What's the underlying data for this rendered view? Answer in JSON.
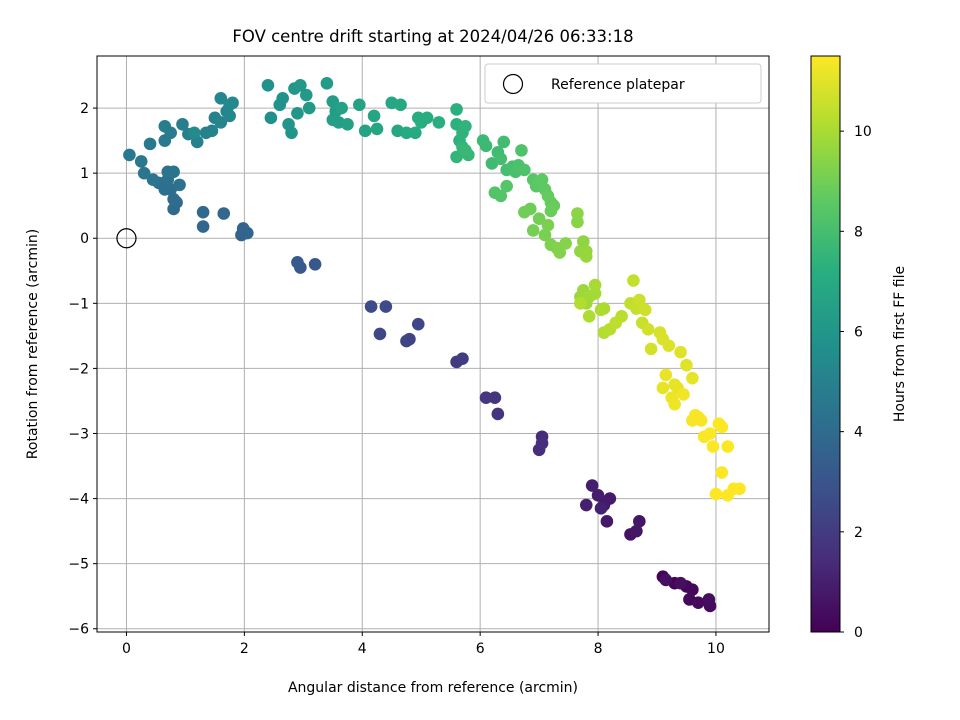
{
  "chart_data": {
    "type": "scatter",
    "title": "FOV centre drift starting at 2024/04/26 06:33:18",
    "xlabel": "Angular distance from reference (arcmin)",
    "ylabel": "Rotation from reference (arcmin)",
    "xlim": [
      -0.5,
      10.9
    ],
    "ylim": [
      -6.05,
      2.8
    ],
    "xticks": [
      0,
      2,
      4,
      6,
      8,
      10
    ],
    "yticks": [
      -6,
      -5,
      -4,
      -3,
      -2,
      -1,
      0,
      1,
      2
    ],
    "grid": true,
    "legend": {
      "placement": "top-right",
      "entries": [
        "Reference platepar"
      ]
    },
    "reference_point": {
      "x": 0,
      "y": 0
    },
    "colorbar": {
      "label": "Hours from first FF file",
      "min": 0,
      "max": 11.5,
      "ticks": [
        0,
        2,
        4,
        6,
        8,
        10
      ],
      "colormap": "viridis"
    },
    "points": [
      [
        9.1,
        -5.2,
        0.05
      ],
      [
        9.3,
        -5.3,
        0.1
      ],
      [
        9.5,
        -5.35,
        0.15
      ],
      [
        9.6,
        -5.4,
        0.2
      ],
      [
        9.55,
        -5.55,
        0.25
      ],
      [
        9.7,
        -5.6,
        0.3
      ],
      [
        9.9,
        -5.65,
        0.35
      ],
      [
        9.88,
        -5.55,
        0.4
      ],
      [
        9.4,
        -5.3,
        0.45
      ],
      [
        9.15,
        -5.25,
        0.5
      ],
      [
        8.55,
        -4.55,
        0.6
      ],
      [
        8.65,
        -4.5,
        0.65
      ],
      [
        8.7,
        -4.35,
        0.7
      ],
      [
        8.15,
        -4.35,
        0.75
      ],
      [
        8.1,
        -4.1,
        0.8
      ],
      [
        8.2,
        -4.0,
        0.85
      ],
      [
        8.0,
        -3.95,
        0.9
      ],
      [
        7.9,
        -3.8,
        0.95
      ],
      [
        7.8,
        -4.1,
        1.0
      ],
      [
        8.05,
        -4.15,
        1.05
      ],
      [
        7.05,
        -3.05,
        1.4
      ],
      [
        7.0,
        -3.25,
        1.45
      ],
      [
        7.05,
        -3.15,
        1.5
      ],
      [
        6.25,
        -2.45,
        1.7
      ],
      [
        6.3,
        -2.7,
        1.75
      ],
      [
        6.1,
        -2.45,
        1.8
      ],
      [
        5.6,
        -1.9,
        2.0
      ],
      [
        5.7,
        -1.85,
        2.05
      ],
      [
        4.8,
        -1.55,
        2.3
      ],
      [
        4.75,
        -1.58,
        2.35
      ],
      [
        4.95,
        -1.32,
        2.45
      ],
      [
        4.3,
        -1.47,
        2.5
      ],
      [
        4.15,
        -1.05,
        2.6
      ],
      [
        4.4,
        -1.05,
        2.65
      ],
      [
        3.2,
        -0.4,
        3.1
      ],
      [
        2.95,
        -0.45,
        3.2
      ],
      [
        2.9,
        -0.37,
        3.25
      ],
      [
        1.95,
        0.05,
        3.6
      ],
      [
        2.0,
        0.1,
        3.65
      ],
      [
        1.98,
        0.15,
        3.7
      ],
      [
        2.05,
        0.08,
        3.72
      ],
      [
        1.3,
        0.18,
        3.8
      ],
      [
        1.65,
        0.38,
        3.85
      ],
      [
        1.3,
        0.4,
        3.9
      ],
      [
        0.8,
        0.45,
        3.95
      ],
      [
        0.85,
        0.55,
        4.0
      ],
      [
        0.8,
        0.6,
        4.05
      ],
      [
        0.75,
        0.75,
        4.1
      ],
      [
        0.65,
        0.75,
        4.15
      ],
      [
        0.55,
        0.85,
        4.2
      ],
      [
        0.7,
        0.9,
        4.25
      ],
      [
        0.9,
        0.82,
        4.3
      ],
      [
        0.7,
        1.02,
        4.35
      ],
      [
        0.8,
        1.02,
        4.4
      ],
      [
        0.45,
        0.9,
        4.45
      ],
      [
        0.3,
        1.0,
        4.5
      ],
      [
        0.25,
        1.18,
        4.55
      ],
      [
        0.05,
        1.28,
        4.6
      ],
      [
        0.4,
        1.45,
        4.65
      ],
      [
        0.65,
        1.5,
        4.7
      ],
      [
        0.75,
        1.62,
        4.75
      ],
      [
        0.65,
        1.72,
        4.8
      ],
      [
        0.95,
        1.75,
        4.85
      ],
      [
        1.05,
        1.6,
        4.9
      ],
      [
        1.2,
        1.48,
        4.95
      ],
      [
        1.35,
        1.62,
        5.0
      ],
      [
        1.45,
        1.65,
        5.05
      ],
      [
        1.5,
        1.85,
        5.1
      ],
      [
        1.6,
        1.78,
        5.15
      ],
      [
        1.7,
        1.95,
        5.2
      ],
      [
        1.75,
        1.88,
        5.25
      ],
      [
        1.6,
        2.15,
        5.3
      ],
      [
        1.75,
        2.05,
        5.35
      ],
      [
        1.8,
        2.08,
        5.4
      ],
      [
        1.15,
        1.62,
        5.45
      ],
      [
        2.45,
        1.85,
        5.7
      ],
      [
        2.4,
        2.35,
        5.75
      ],
      [
        2.6,
        2.05,
        5.8
      ],
      [
        2.65,
        2.15,
        5.85
      ],
      [
        2.75,
        1.75,
        5.9
      ],
      [
        2.8,
        1.62,
        5.95
      ],
      [
        2.85,
        2.3,
        6.0
      ],
      [
        2.9,
        1.92,
        6.05
      ],
      [
        2.95,
        2.35,
        6.1
      ],
      [
        3.05,
        2.2,
        6.15
      ],
      [
        3.1,
        2.0,
        6.2
      ],
      [
        3.4,
        2.38,
        6.25
      ],
      [
        3.5,
        2.1,
        6.3
      ],
      [
        3.55,
        1.95,
        6.35
      ],
      [
        3.6,
        1.78,
        6.4
      ],
      [
        3.5,
        1.82,
        6.45
      ],
      [
        3.75,
        1.75,
        6.5
      ],
      [
        3.65,
        2.0,
        6.55
      ],
      [
        3.95,
        2.05,
        6.6
      ],
      [
        4.05,
        1.65,
        6.65
      ],
      [
        4.2,
        1.88,
        6.7
      ],
      [
        4.25,
        1.68,
        6.75
      ],
      [
        4.5,
        2.08,
        6.8
      ],
      [
        4.6,
        1.65,
        6.85
      ],
      [
        4.65,
        2.05,
        6.9
      ],
      [
        4.75,
        1.62,
        6.95
      ],
      [
        4.9,
        1.62,
        7.0
      ],
      [
        4.95,
        1.85,
        7.05
      ],
      [
        5.0,
        1.78,
        7.1
      ],
      [
        5.1,
        1.85,
        7.15
      ],
      [
        5.3,
        1.78,
        7.2
      ],
      [
        5.6,
        1.98,
        7.25
      ],
      [
        5.6,
        1.75,
        7.3
      ],
      [
        5.65,
        1.5,
        7.35
      ],
      [
        5.7,
        1.62,
        7.4
      ],
      [
        5.75,
        1.72,
        7.45
      ],
      [
        5.6,
        1.25,
        7.5
      ],
      [
        5.7,
        1.4,
        7.55
      ],
      [
        5.8,
        1.28,
        7.6
      ],
      [
        5.75,
        1.35,
        7.65
      ],
      [
        6.05,
        1.5,
        7.7
      ],
      [
        6.1,
        1.42,
        7.75
      ],
      [
        6.2,
        1.15,
        7.8
      ],
      [
        6.3,
        1.32,
        7.85
      ],
      [
        6.4,
        1.48,
        7.9
      ],
      [
        6.35,
        1.22,
        7.95
      ],
      [
        6.45,
        1.05,
        8.0
      ],
      [
        6.55,
        1.1,
        8.05
      ],
      [
        6.6,
        1.02,
        8.1
      ],
      [
        6.65,
        1.12,
        8.15
      ],
      [
        6.75,
        1.05,
        8.2
      ],
      [
        6.7,
        1.35,
        8.25
      ],
      [
        6.25,
        0.7,
        8.3
      ],
      [
        6.35,
        0.65,
        8.35
      ],
      [
        6.45,
        0.8,
        8.4
      ],
      [
        6.9,
        0.9,
        8.45
      ],
      [
        6.95,
        0.8,
        8.5
      ],
      [
        7.0,
        0.85,
        8.55
      ],
      [
        7.05,
        0.9,
        8.6
      ],
      [
        7.1,
        0.75,
        8.65
      ],
      [
        7.15,
        0.65,
        8.7
      ],
      [
        7.2,
        0.55,
        8.75
      ],
      [
        7.25,
        0.5,
        8.8
      ],
      [
        7.2,
        0.42,
        8.85
      ],
      [
        6.85,
        0.45,
        8.9
      ],
      [
        6.75,
        0.4,
        8.95
      ],
      [
        7.0,
        0.3,
        9.0
      ],
      [
        6.9,
        0.12,
        9.05
      ],
      [
        7.1,
        0.05,
        9.1
      ],
      [
        7.15,
        0.2,
        9.15
      ],
      [
        7.2,
        -0.1,
        9.2
      ],
      [
        7.3,
        -0.15,
        9.25
      ],
      [
        7.35,
        -0.22,
        9.3
      ],
      [
        7.45,
        -0.08,
        9.35
      ],
      [
        7.65,
        0.25,
        9.4
      ],
      [
        7.65,
        0.38,
        9.45
      ],
      [
        7.75,
        -0.05,
        9.5
      ],
      [
        7.7,
        -0.2,
        9.55
      ],
      [
        7.8,
        -0.2,
        9.6
      ],
      [
        7.8,
        -0.28,
        9.65
      ],
      [
        7.7,
        -0.9,
        9.7
      ],
      [
        7.75,
        -0.8,
        9.75
      ],
      [
        7.8,
        -1.0,
        9.8
      ],
      [
        7.85,
        -0.9,
        9.85
      ],
      [
        7.95,
        -0.85,
        9.9
      ],
      [
        7.95,
        -0.72,
        9.95
      ],
      [
        8.1,
        -1.08,
        10.0
      ],
      [
        8.05,
        -1.1,
        10.05
      ],
      [
        7.85,
        -1.2,
        10.1
      ],
      [
        7.7,
        -1.0,
        10.15
      ],
      [
        8.1,
        -1.45,
        10.2
      ],
      [
        8.2,
        -1.4,
        10.25
      ],
      [
        8.4,
        -1.2,
        10.3
      ],
      [
        8.3,
        -1.3,
        10.35
      ],
      [
        8.55,
        -1.0,
        10.4
      ],
      [
        8.6,
        -0.65,
        10.45
      ],
      [
        8.65,
        -1.08,
        10.5
      ],
      [
        8.75,
        -1.3,
        10.55
      ],
      [
        8.7,
        -0.95,
        10.6
      ],
      [
        8.8,
        -1.1,
        10.65
      ],
      [
        8.85,
        -1.4,
        10.7
      ],
      [
        8.9,
        -1.7,
        10.75
      ],
      [
        9.05,
        -1.45,
        10.8
      ],
      [
        9.1,
        -1.55,
        10.85
      ],
      [
        9.2,
        -1.65,
        10.9
      ],
      [
        9.4,
        -1.75,
        10.95
      ],
      [
        9.5,
        -1.95,
        11.0
      ],
      [
        9.3,
        -2.25,
        11.05
      ],
      [
        9.35,
        -2.3,
        11.1
      ],
      [
        9.15,
        -2.1,
        11.15
      ],
      [
        9.25,
        -2.45,
        11.2
      ],
      [
        9.3,
        -2.55,
        11.25
      ],
      [
        9.45,
        -2.4,
        11.3
      ],
      [
        9.6,
        -2.8,
        11.35
      ],
      [
        9.7,
        -2.75,
        11.4
      ],
      [
        9.8,
        -3.05,
        11.42
      ],
      [
        9.9,
        -3.0,
        11.44
      ],
      [
        9.95,
        -3.2,
        11.46
      ],
      [
        10.1,
        -2.9,
        11.47
      ],
      [
        10.05,
        -2.85,
        11.48
      ],
      [
        10.2,
        -3.2,
        11.49
      ],
      [
        10.0,
        -3.93,
        11.5
      ],
      [
        10.1,
        -3.6,
        11.5
      ],
      [
        10.2,
        -3.95,
        11.5
      ],
      [
        10.3,
        -3.85,
        11.5
      ],
      [
        10.4,
        -3.85,
        11.5
      ],
      [
        9.65,
        -2.72,
        11.38
      ],
      [
        9.75,
        -2.8,
        11.4
      ],
      [
        9.6,
        -2.15,
        11.08
      ],
      [
        9.1,
        -2.3,
        11.1
      ]
    ]
  }
}
